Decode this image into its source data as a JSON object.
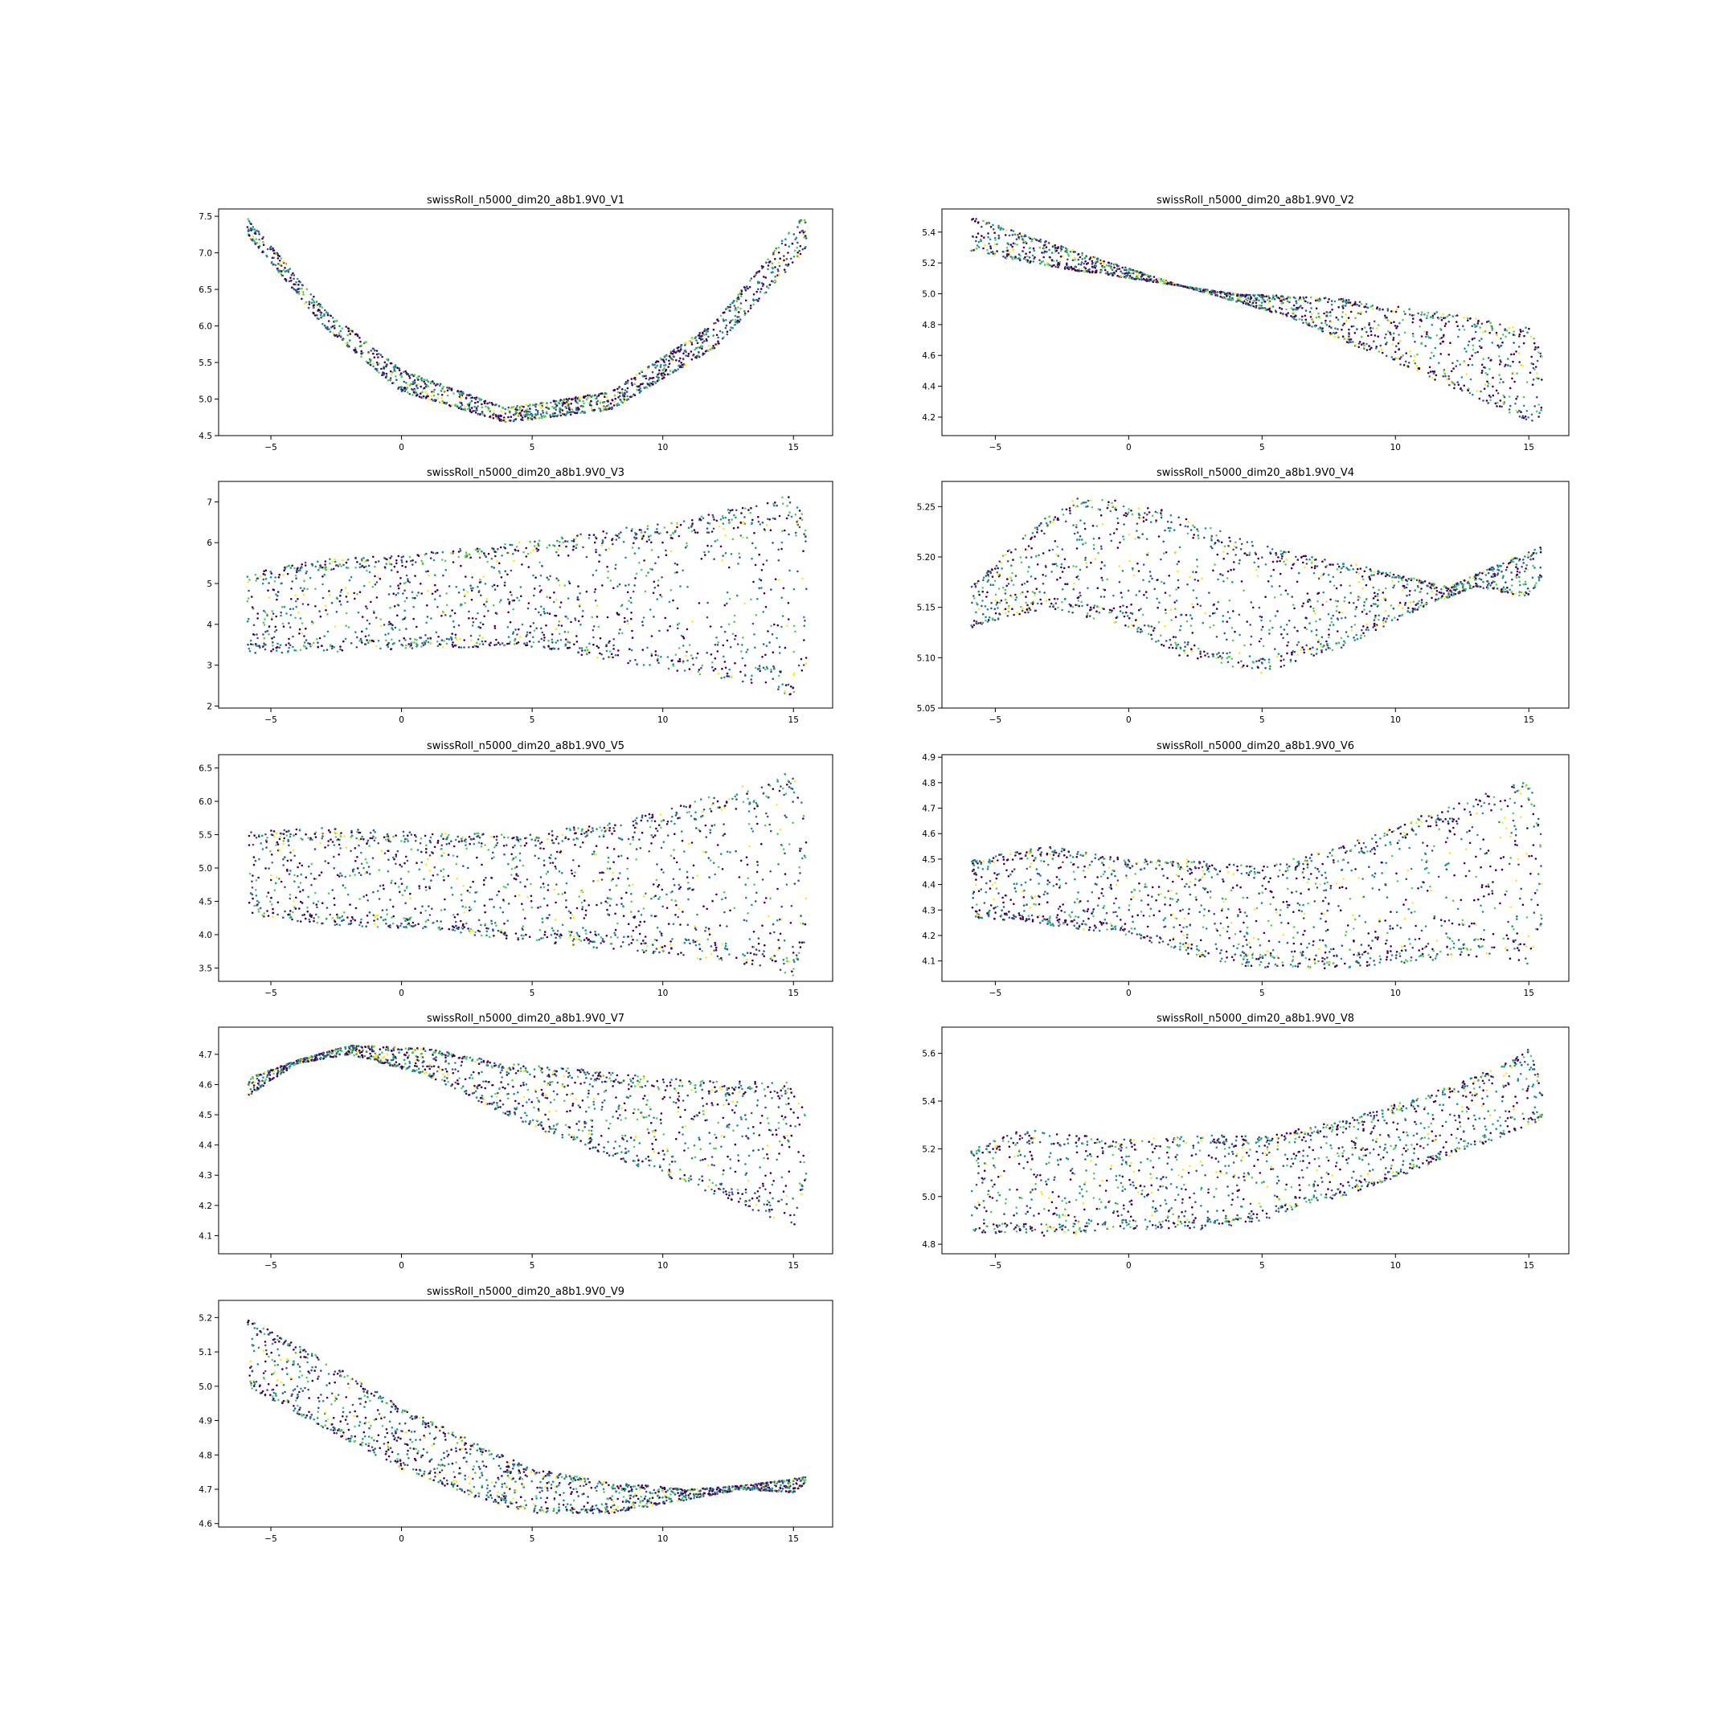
{
  "figure": {
    "background": "#ffffff",
    "colormap": [
      "#440154",
      "#3b528b",
      "#21918c",
      "#5ec962",
      "#fde725"
    ],
    "colormap_name": "viridis",
    "marker": "small dots",
    "layout": "5 rows x 2 columns, last cell empty"
  },
  "chart_data": [
    {
      "type": "scatter",
      "title": "swissRoll_n5000_dim20_a8b1.9V0_V1",
      "xlabel": "",
      "ylabel": "",
      "xlim": [
        -7,
        16.5
      ],
      "ylim": [
        4.5,
        7.6
      ],
      "xticks": [
        -5,
        0,
        5,
        10,
        15
      ],
      "xtick_labels": [
        "−5",
        "0",
        "5",
        "10",
        "15"
      ],
      "yticks": [
        4.5,
        5.0,
        5.5,
        6.0,
        6.5,
        7.0,
        7.5
      ],
      "ytick_labels": [
        "4.5",
        "5.0",
        "5.5",
        "6.0",
        "6.5",
        "7.0",
        "7.5"
      ],
      "grid": false,
      "x_range": [
        -5.9,
        15.5
      ],
      "shape": "parabola",
      "lower_edge": [
        [
          -5.9,
          7.25
        ],
        [
          -3,
          6.0
        ],
        [
          0,
          5.1
        ],
        [
          4,
          4.68
        ],
        [
          8,
          4.85
        ],
        [
          12,
          5.7
        ],
        [
          15.5,
          7.05
        ]
      ],
      "upper_edge": [
        [
          -5.9,
          7.48
        ],
        [
          -3,
          6.25
        ],
        [
          0,
          5.4
        ],
        [
          4,
          4.88
        ],
        [
          8,
          5.1
        ],
        [
          12,
          6.05
        ],
        [
          15.2,
          7.45
        ]
      ]
    },
    {
      "type": "scatter",
      "title": "swissRoll_n5000_dim20_a8b1.9V0_V2",
      "xlabel": "",
      "ylabel": "",
      "xlim": [
        -7,
        16.5
      ],
      "ylim": [
        4.08,
        5.55
      ],
      "xticks": [
        -5,
        0,
        5,
        10,
        15
      ],
      "xtick_labels": [
        "−5",
        "0",
        "5",
        "10",
        "15"
      ],
      "yticks": [
        4.2,
        4.4,
        4.6,
        4.8,
        5.0,
        5.2,
        5.4
      ],
      "ytick_labels": [
        "4.2",
        "4.4",
        "4.6",
        "4.8",
        "5.0",
        "5.2",
        "5.4"
      ],
      "grid": false,
      "x_range": [
        -5.9,
        15.5
      ],
      "shape": "band",
      "lower_edge": [
        [
          -5.9,
          5.27
        ],
        [
          -2,
          5.15
        ],
        [
          2,
          5.05
        ],
        [
          6,
          4.85
        ],
        [
          10,
          4.55
        ],
        [
          14,
          4.25
        ],
        [
          15,
          4.15
        ],
        [
          15.5,
          4.2
        ]
      ],
      "upper_edge": [
        [
          -5.9,
          5.5
        ],
        [
          -2,
          5.28
        ],
        [
          2,
          5.05
        ],
        [
          4,
          5.0
        ],
        [
          8,
          4.97
        ],
        [
          12,
          4.87
        ],
        [
          15,
          4.78
        ],
        [
          15.5,
          4.6
        ]
      ]
    },
    {
      "type": "scatter",
      "title": "swissRoll_n5000_dim20_a8b1.9V0_V3",
      "xlabel": "",
      "ylabel": "",
      "xlim": [
        -7,
        16.5
      ],
      "ylim": [
        1.95,
        7.5
      ],
      "xticks": [
        -5,
        0,
        5,
        10,
        15
      ],
      "xtick_labels": [
        "−5",
        "0",
        "5",
        "10",
        "15"
      ],
      "yticks": [
        2,
        3,
        4,
        5,
        6,
        7
      ],
      "ytick_labels": [
        "2",
        "3",
        "4",
        "5",
        "6",
        "7"
      ],
      "grid": false,
      "x_range": [
        -5.9,
        15.5
      ],
      "shape": "band",
      "lower_edge": [
        [
          -5.9,
          3.3
        ],
        [
          -3,
          3.3
        ],
        [
          0,
          3.4
        ],
        [
          5,
          3.45
        ],
        [
          10,
          2.9
        ],
        [
          14,
          2.5
        ],
        [
          15,
          2.2
        ],
        [
          15.5,
          3.0
        ]
      ],
      "upper_edge": [
        [
          -5.9,
          5.25
        ],
        [
          -3,
          5.6
        ],
        [
          0,
          5.7
        ],
        [
          5,
          6.05
        ],
        [
          10,
          6.5
        ],
        [
          14,
          7.0
        ],
        [
          15,
          7.2
        ],
        [
          15.5,
          6.5
        ]
      ]
    },
    {
      "type": "scatter",
      "title": "swissRoll_n5000_dim20_a8b1.9V0_V4",
      "xlabel": "",
      "ylabel": "",
      "xlim": [
        -7,
        16.5
      ],
      "ylim": [
        5.05,
        5.275
      ],
      "xticks": [
        -5,
        0,
        5,
        10,
        15
      ],
      "xtick_labels": [
        "−5",
        "0",
        "5",
        "10",
        "15"
      ],
      "yticks": [
        5.05,
        5.1,
        5.15,
        5.2,
        5.25
      ],
      "ytick_labels": [
        "5.05",
        "5.10",
        "5.15",
        "5.20",
        "5.25"
      ],
      "grid": false,
      "x_range": [
        -5.9,
        15.5
      ],
      "shape": "band",
      "lower_edge": [
        [
          -5.9,
          5.13
        ],
        [
          -3,
          5.15
        ],
        [
          0,
          5.13
        ],
        [
          2,
          5.1
        ],
        [
          5,
          5.085
        ],
        [
          8,
          5.11
        ],
        [
          11,
          5.15
        ],
        [
          13,
          5.17
        ],
        [
          15,
          5.16
        ],
        [
          15.5,
          5.18
        ]
      ],
      "upper_edge": [
        [
          -5.9,
          5.17
        ],
        [
          -4,
          5.22
        ],
        [
          -2,
          5.262
        ],
        [
          1,
          5.25
        ],
        [
          4,
          5.22
        ],
        [
          6,
          5.205
        ],
        [
          9,
          5.19
        ],
        [
          12,
          5.17
        ],
        [
          14,
          5.195
        ],
        [
          15.5,
          5.21
        ]
      ]
    },
    {
      "type": "scatter",
      "title": "swissRoll_n5000_dim20_a8b1.9V0_V5",
      "xlabel": "",
      "ylabel": "",
      "xlim": [
        -7,
        16.5
      ],
      "ylim": [
        3.3,
        6.7
      ],
      "xticks": [
        -5,
        0,
        5,
        10,
        15
      ],
      "xtick_labels": [
        "−5",
        "0",
        "5",
        "10",
        "15"
      ],
      "yticks": [
        3.5,
        4.0,
        4.5,
        5.0,
        5.5,
        6.0,
        6.5
      ],
      "ytick_labels": [
        "3.5",
        "4.0",
        "4.5",
        "5.0",
        "5.5",
        "6.0",
        "6.5"
      ],
      "grid": false,
      "x_range": [
        -5.9,
        15.5
      ],
      "shape": "band",
      "lower_edge": [
        [
          -5.9,
          4.3
        ],
        [
          -3,
          4.15
        ],
        [
          0,
          4.1
        ],
        [
          5,
          3.9
        ],
        [
          10,
          3.7
        ],
        [
          14,
          3.5
        ],
        [
          15,
          3.38
        ],
        [
          15.5,
          4.0
        ]
      ],
      "upper_edge": [
        [
          -5.9,
          5.55
        ],
        [
          -3,
          5.6
        ],
        [
          0,
          5.55
        ],
        [
          5,
          5.5
        ],
        [
          10,
          5.85
        ],
        [
          14,
          6.35
        ],
        [
          15,
          6.5
        ],
        [
          15.5,
          5.8
        ]
      ]
    },
    {
      "type": "scatter",
      "title": "swissRoll_n5000_dim20_a8b1.9V0_V6",
      "xlabel": "",
      "ylabel": "",
      "xlim": [
        -7,
        16.5
      ],
      "ylim": [
        4.02,
        4.91
      ],
      "xticks": [
        -5,
        0,
        5,
        10,
        15
      ],
      "xtick_labels": [
        "−5",
        "0",
        "5",
        "10",
        "15"
      ],
      "yticks": [
        4.1,
        4.2,
        4.3,
        4.4,
        4.5,
        4.6,
        4.7,
        4.8,
        4.9
      ],
      "ytick_labels": [
        "4.1",
        "4.2",
        "4.3",
        "4.4",
        "4.5",
        "4.6",
        "4.7",
        "4.8",
        "4.9"
      ],
      "grid": false,
      "x_range": [
        -5.9,
        15.5
      ],
      "shape": "band",
      "lower_edge": [
        [
          -5.9,
          4.27
        ],
        [
          -3,
          4.24
        ],
        [
          0,
          4.2
        ],
        [
          3,
          4.1
        ],
        [
          5,
          4.07
        ],
        [
          8,
          4.07
        ],
        [
          11,
          4.1
        ],
        [
          14,
          4.12
        ],
        [
          15,
          4.08
        ],
        [
          15.5,
          4.25
        ]
      ],
      "upper_edge": [
        [
          -5.9,
          4.5
        ],
        [
          -3,
          4.55
        ],
        [
          0,
          4.5
        ],
        [
          2,
          4.5
        ],
        [
          5,
          4.47
        ],
        [
          8,
          4.55
        ],
        [
          11,
          4.67
        ],
        [
          14,
          4.78
        ],
        [
          15,
          4.82
        ],
        [
          15.5,
          4.6
        ]
      ]
    },
    {
      "type": "scatter",
      "title": "swissRoll_n5000_dim20_a8b1.9V0_V7",
      "xlabel": "",
      "ylabel": "",
      "xlim": [
        -7,
        16.5
      ],
      "ylim": [
        4.04,
        4.79
      ],
      "xticks": [
        -5,
        0,
        5,
        10,
        15
      ],
      "xtick_labels": [
        "−5",
        "0",
        "5",
        "10",
        "15"
      ],
      "yticks": [
        4.1,
        4.2,
        4.3,
        4.4,
        4.5,
        4.6,
        4.7
      ],
      "ytick_labels": [
        "4.1",
        "4.2",
        "4.3",
        "4.4",
        "4.5",
        "4.6",
        "4.7"
      ],
      "grid": false,
      "x_range": [
        -5.9,
        15.5
      ],
      "shape": "band",
      "lower_edge": [
        [
          -5.9,
          4.56
        ],
        [
          -4,
          4.67
        ],
        [
          -2,
          4.7
        ],
        [
          1,
          4.63
        ],
        [
          4,
          4.5
        ],
        [
          7,
          4.39
        ],
        [
          10,
          4.3
        ],
        [
          13,
          4.2
        ],
        [
          15,
          4.12
        ],
        [
          15.5,
          4.3
        ]
      ],
      "upper_edge": [
        [
          -5.9,
          4.62
        ],
        [
          -4,
          4.68
        ],
        [
          -2,
          4.73
        ],
        [
          1,
          4.72
        ],
        [
          4,
          4.67
        ],
        [
          7,
          4.65
        ],
        [
          10,
          4.62
        ],
        [
          13,
          4.61
        ],
        [
          15,
          4.61
        ],
        [
          15.5,
          4.5
        ]
      ]
    },
    {
      "type": "scatter",
      "title": "swissRoll_n5000_dim20_a8b1.9V0_V8",
      "xlabel": "",
      "ylabel": "",
      "xlim": [
        -7,
        16.5
      ],
      "ylim": [
        4.76,
        5.71
      ],
      "xticks": [
        -5,
        0,
        5,
        10,
        15
      ],
      "xtick_labels": [
        "−5",
        "0",
        "5",
        "10",
        "15"
      ],
      "yticks": [
        4.8,
        5.0,
        5.2,
        5.4,
        5.6
      ],
      "ytick_labels": [
        "4.8",
        "5.0",
        "5.2",
        "5.4",
        "5.6"
      ],
      "grid": false,
      "x_range": [
        -5.9,
        15.5
      ],
      "shape": "band",
      "lower_edge": [
        [
          -5.9,
          4.85
        ],
        [
          -3,
          4.83
        ],
        [
          0,
          4.86
        ],
        [
          3,
          4.86
        ],
        [
          5,
          4.9
        ],
        [
          8,
          5.0
        ],
        [
          11,
          5.12
        ],
        [
          14,
          5.25
        ],
        [
          15.5,
          5.32
        ]
      ],
      "upper_edge": [
        [
          -5.9,
          5.2
        ],
        [
          -4,
          5.28
        ],
        [
          0,
          5.24
        ],
        [
          3,
          5.26
        ],
        [
          5,
          5.25
        ],
        [
          8,
          5.32
        ],
        [
          11,
          5.42
        ],
        [
          14,
          5.55
        ],
        [
          15,
          5.62
        ],
        [
          15.5,
          5.48
        ]
      ]
    },
    {
      "type": "scatter",
      "title": "swissRoll_n5000_dim20_a8b1.9V0_V9",
      "xlabel": "",
      "ylabel": "",
      "xlim": [
        -7,
        16.5
      ],
      "ylim": [
        4.59,
        5.25
      ],
      "xticks": [
        -5,
        0,
        5,
        10,
        15
      ],
      "xtick_labels": [
        "−5",
        "0",
        "5",
        "10",
        "15"
      ],
      "yticks": [
        4.6,
        4.7,
        4.8,
        4.9,
        5.0,
        5.1,
        5.2
      ],
      "ytick_labels": [
        "4.6",
        "4.7",
        "4.8",
        "4.9",
        "5.0",
        "5.1",
        "5.2"
      ],
      "grid": false,
      "x_range": [
        -5.9,
        15.5
      ],
      "shape": "band",
      "lower_edge": [
        [
          -5.9,
          5.0
        ],
        [
          -3,
          4.88
        ],
        [
          0,
          4.76
        ],
        [
          3,
          4.67
        ],
        [
          5,
          4.63
        ],
        [
          8,
          4.63
        ],
        [
          11,
          4.67
        ],
        [
          13,
          4.7
        ],
        [
          15,
          4.69
        ],
        [
          15.5,
          4.72
        ]
      ],
      "upper_edge": [
        [
          -5.9,
          5.2
        ],
        [
          -3,
          5.08
        ],
        [
          0,
          4.94
        ],
        [
          3,
          4.83
        ],
        [
          5,
          4.76
        ],
        [
          8,
          4.72
        ],
        [
          11,
          4.7
        ],
        [
          13,
          4.71
        ],
        [
          15,
          4.73
        ],
        [
          15.5,
          4.74
        ]
      ]
    }
  ]
}
